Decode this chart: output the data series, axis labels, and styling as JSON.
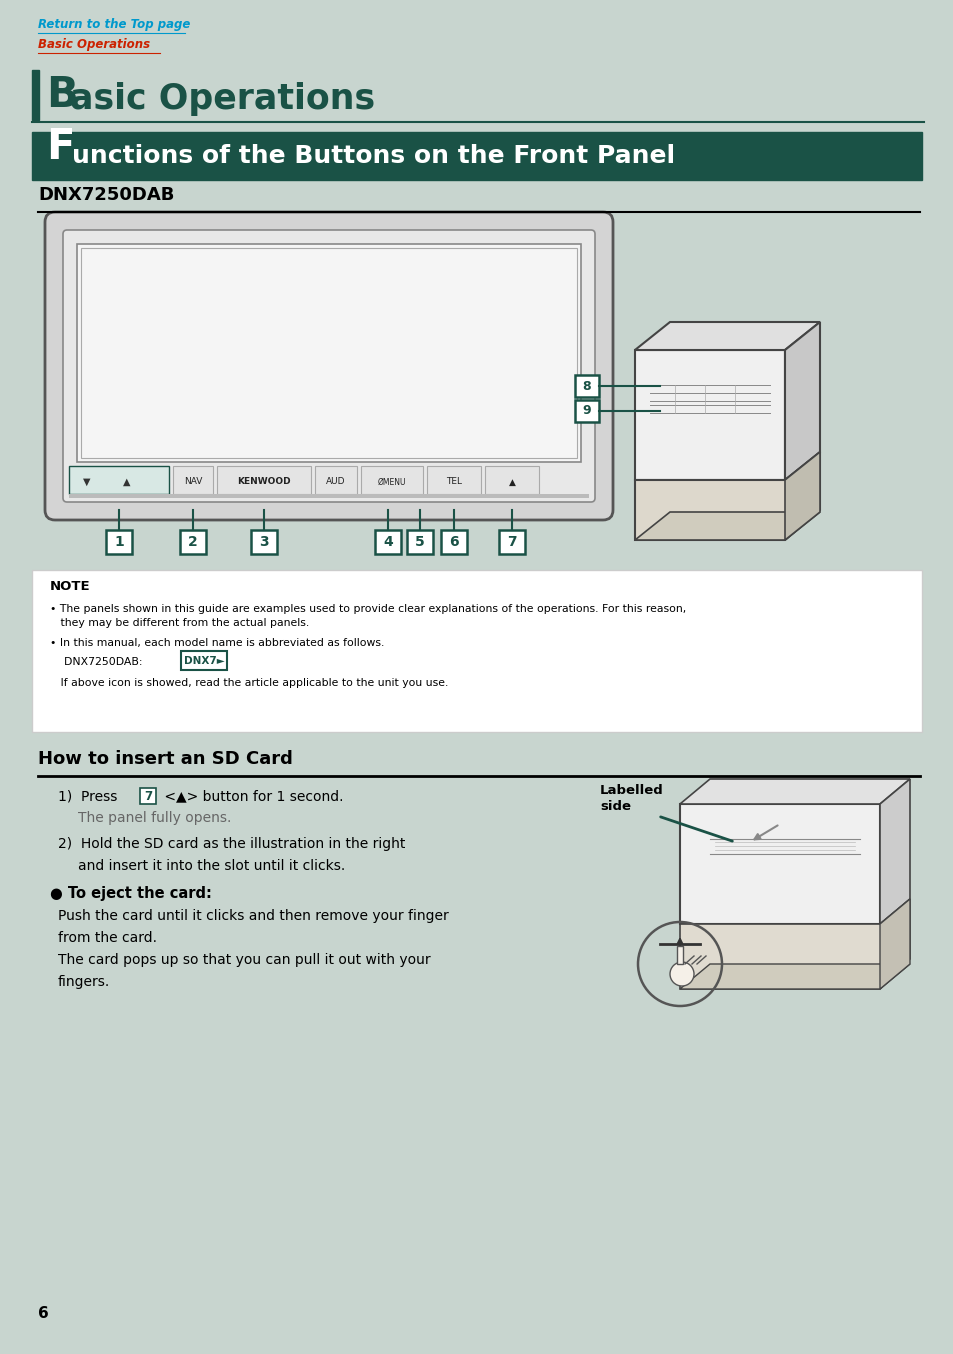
{
  "bg_color": "#c8d5cf",
  "page_bg": "#c8d5cf",
  "top_link1": "Return to the Top page",
  "top_link2": "Basic Operations",
  "section1_letter": "B",
  "section1_text": "asic Operations",
  "section2_letter": "F",
  "section2_text": "unctions of the Buttons on the Front Panel",
  "section2_bg": "#1a5246",
  "model_title": "DNX7250DAB",
  "note_title": "NOTE",
  "note_line1": "• The panels shown in this guide are examples used to provide clear explanations of the operations. For this reason,",
  "note_line2": "   they may be different from the actual panels.",
  "note_line3": "• In this manual, each model name is abbreviated as follows.",
  "sd_title": "How to insert an SD Card",
  "sd_step1a_pre": "1)  Press ",
  "sd_step1a_post": " <▲> button for 1 second.",
  "sd_step1b": "The panel fully opens.",
  "sd_step2a": "2)  Hold the SD card as the illustration in the right",
  "sd_step2b": "and insert it into the slot until it clicks.",
  "sd_eject_title": "● To eject the card:",
  "sd_eject1": "Push the card until it clicks and then remove your finger",
  "sd_eject2": "from the card.",
  "sd_eject3": "The card pops up so that you can pull it out with your",
  "sd_eject4": "fingers.",
  "labelled_side": "Labelled\nside",
  "page_number": "6",
  "dark_green": "#1a5246",
  "link_blue": "#0099cc",
  "link_red": "#cc2200",
  "white": "#ffffff",
  "dev_outer_color": "#e8e8e8",
  "dev_screen_color": "#f5f5f5",
  "dev_bezel_color": "#d8d8d8",
  "dev_btn_bar_color": "#e0e0e0"
}
